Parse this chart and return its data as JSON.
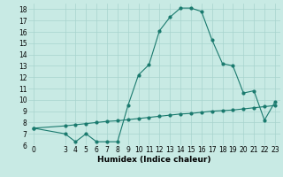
{
  "title": "",
  "xlabel": "Humidex (Indice chaleur)",
  "ylabel": "",
  "bg_color": "#c8eae4",
  "grid_color": "#a8d4ce",
  "line_color": "#1a7a6e",
  "xlim": [
    -0.5,
    23.5
  ],
  "ylim": [
    6,
    18.5
  ],
  "xticks": [
    0,
    3,
    4,
    5,
    6,
    7,
    8,
    9,
    10,
    11,
    12,
    13,
    14,
    15,
    16,
    17,
    18,
    19,
    20,
    21,
    22,
    23
  ],
  "yticks": [
    6,
    7,
    8,
    9,
    10,
    11,
    12,
    13,
    14,
    15,
    16,
    17,
    18
  ],
  "curve1_x": [
    0,
    3,
    4,
    5,
    6,
    7,
    8,
    9,
    10,
    11,
    12,
    13,
    14,
    15,
    16,
    17,
    18,
    19,
    20,
    21,
    22,
    23
  ],
  "curve1_y": [
    7.5,
    7.0,
    6.3,
    7.0,
    6.3,
    6.3,
    6.3,
    9.5,
    12.2,
    13.1,
    16.1,
    17.3,
    18.1,
    18.1,
    17.8,
    15.3,
    13.2,
    13.0,
    10.6,
    10.8,
    8.2,
    9.8
  ],
  "curve2_x": [
    0,
    3,
    4,
    5,
    6,
    7,
    8,
    9,
    10,
    11,
    12,
    13,
    14,
    15,
    16,
    17,
    18,
    19,
    20,
    21,
    22,
    23
  ],
  "curve2_y": [
    7.5,
    7.7,
    7.8,
    7.9,
    8.0,
    8.1,
    8.15,
    8.25,
    8.35,
    8.45,
    8.55,
    8.65,
    8.75,
    8.8,
    8.9,
    9.0,
    9.05,
    9.1,
    9.2,
    9.3,
    9.4,
    9.5
  ],
  "tick_fontsize": 5.5,
  "xlabel_fontsize": 6.5,
  "marker_size": 2.0,
  "line_width": 0.8
}
